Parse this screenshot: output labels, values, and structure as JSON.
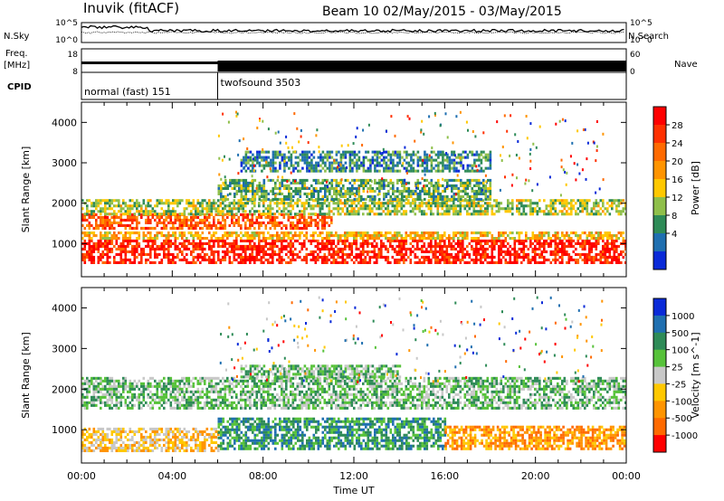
{
  "header": {
    "station": "Inuvik (fitACF)",
    "beam_info": "Beam 10 02/May/2015 - 03/May/2015"
  },
  "summary": {
    "nsky_label": "N.Sky",
    "nsearch_label": "N.Search",
    "freq_label": "Freq.",
    "freq_unit": "[MHz]",
    "nave_label": "Nave",
    "cpid_label": "CPID",
    "left_ticks": {
      "sky_top": "10^5",
      "sky_bottom": "10^0",
      "freq_top": "18",
      "freq_bottom": "8"
    },
    "right_ticks": {
      "search_top": "10^5",
      "search_bottom": "10^0",
      "nave_top": "60",
      "nave_bottom": "0"
    },
    "cpid_modes": [
      {
        "label": "normal (fast) 151",
        "start_hour": 0,
        "end_hour": 6
      },
      {
        "label": "twofsound 3503",
        "start_hour": 6,
        "end_hour": 24
      }
    ]
  },
  "chart_data": [
    {
      "type": "heatmap",
      "name": "power",
      "ylabel": "Slant Range [km]",
      "xlim": [
        0,
        24
      ],
      "ylim": [
        180,
        4500
      ],
      "yticks": [
        1000,
        2000,
        3000,
        4000
      ],
      "colorbar": {
        "label": "Power [dB]",
        "ticks": [
          "28",
          "24",
          "20",
          "16",
          "12",
          "8",
          "4"
        ],
        "colors": [
          "#ff0000",
          "#ff3000",
          "#ff6a00",
          "#ff9400",
          "#ffc800",
          "#8fbf4a",
          "#2e8b57",
          "#1f6fb0",
          "#0a2ad8"
        ]
      },
      "bands": [
        {
          "range": [
            500,
            1100
          ],
          "start": 0,
          "end": 24,
          "level": 0.95
        },
        {
          "range": [
            1100,
            1300
          ],
          "start": 0,
          "end": 24,
          "level": 0.55
        },
        {
          "range": [
            1400,
            1750
          ],
          "start": 0,
          "end": 11,
          "level": 0.8
        },
        {
          "range": [
            1750,
            2100
          ],
          "start": 0,
          "end": 24,
          "level": 0.4
        },
        {
          "range": [
            2100,
            2600
          ],
          "start": 6,
          "end": 18,
          "level": 0.3
        },
        {
          "range": [
            2800,
            3300
          ],
          "start": 7,
          "end": 18,
          "level": 0.2
        }
      ]
    },
    {
      "type": "heatmap",
      "name": "velocity",
      "xlabel": "Time UT",
      "ylabel": "Slant Range [km]",
      "xlim": [
        0,
        24
      ],
      "ylim": [
        180,
        4500
      ],
      "yticks": [
        1000,
        2000,
        3000,
        4000
      ],
      "xticks": [
        "00:00",
        "04:00",
        "08:00",
        "12:00",
        "16:00",
        "20:00",
        "00:00"
      ],
      "colorbar": {
        "label": "Velocity [m s^-1]",
        "ticks": [
          "1000",
          "500",
          "100",
          "25",
          "-25",
          "-100",
          "-500",
          "-1000"
        ],
        "colors": [
          "#0a2ad8",
          "#1f6fb0",
          "#2e8b57",
          "#57c23a",
          "#c8c8c8",
          "#ffc800",
          "#ff9400",
          "#ff6a00",
          "#ff0000"
        ]
      },
      "bands": [
        {
          "range": [
            500,
            1050
          ],
          "start": 0,
          "end": 6,
          "level": "-100"
        },
        {
          "range": [
            550,
            1300
          ],
          "start": 6,
          "end": 16,
          "level": "100"
        },
        {
          "range": [
            500,
            1100
          ],
          "start": 16,
          "end": 24,
          "level": "-500"
        },
        {
          "range": [
            1500,
            2300
          ],
          "start": 0,
          "end": 24,
          "level": "25"
        },
        {
          "range": [
            2300,
            2600
          ],
          "start": 7,
          "end": 14,
          "level": "25"
        }
      ]
    }
  ]
}
